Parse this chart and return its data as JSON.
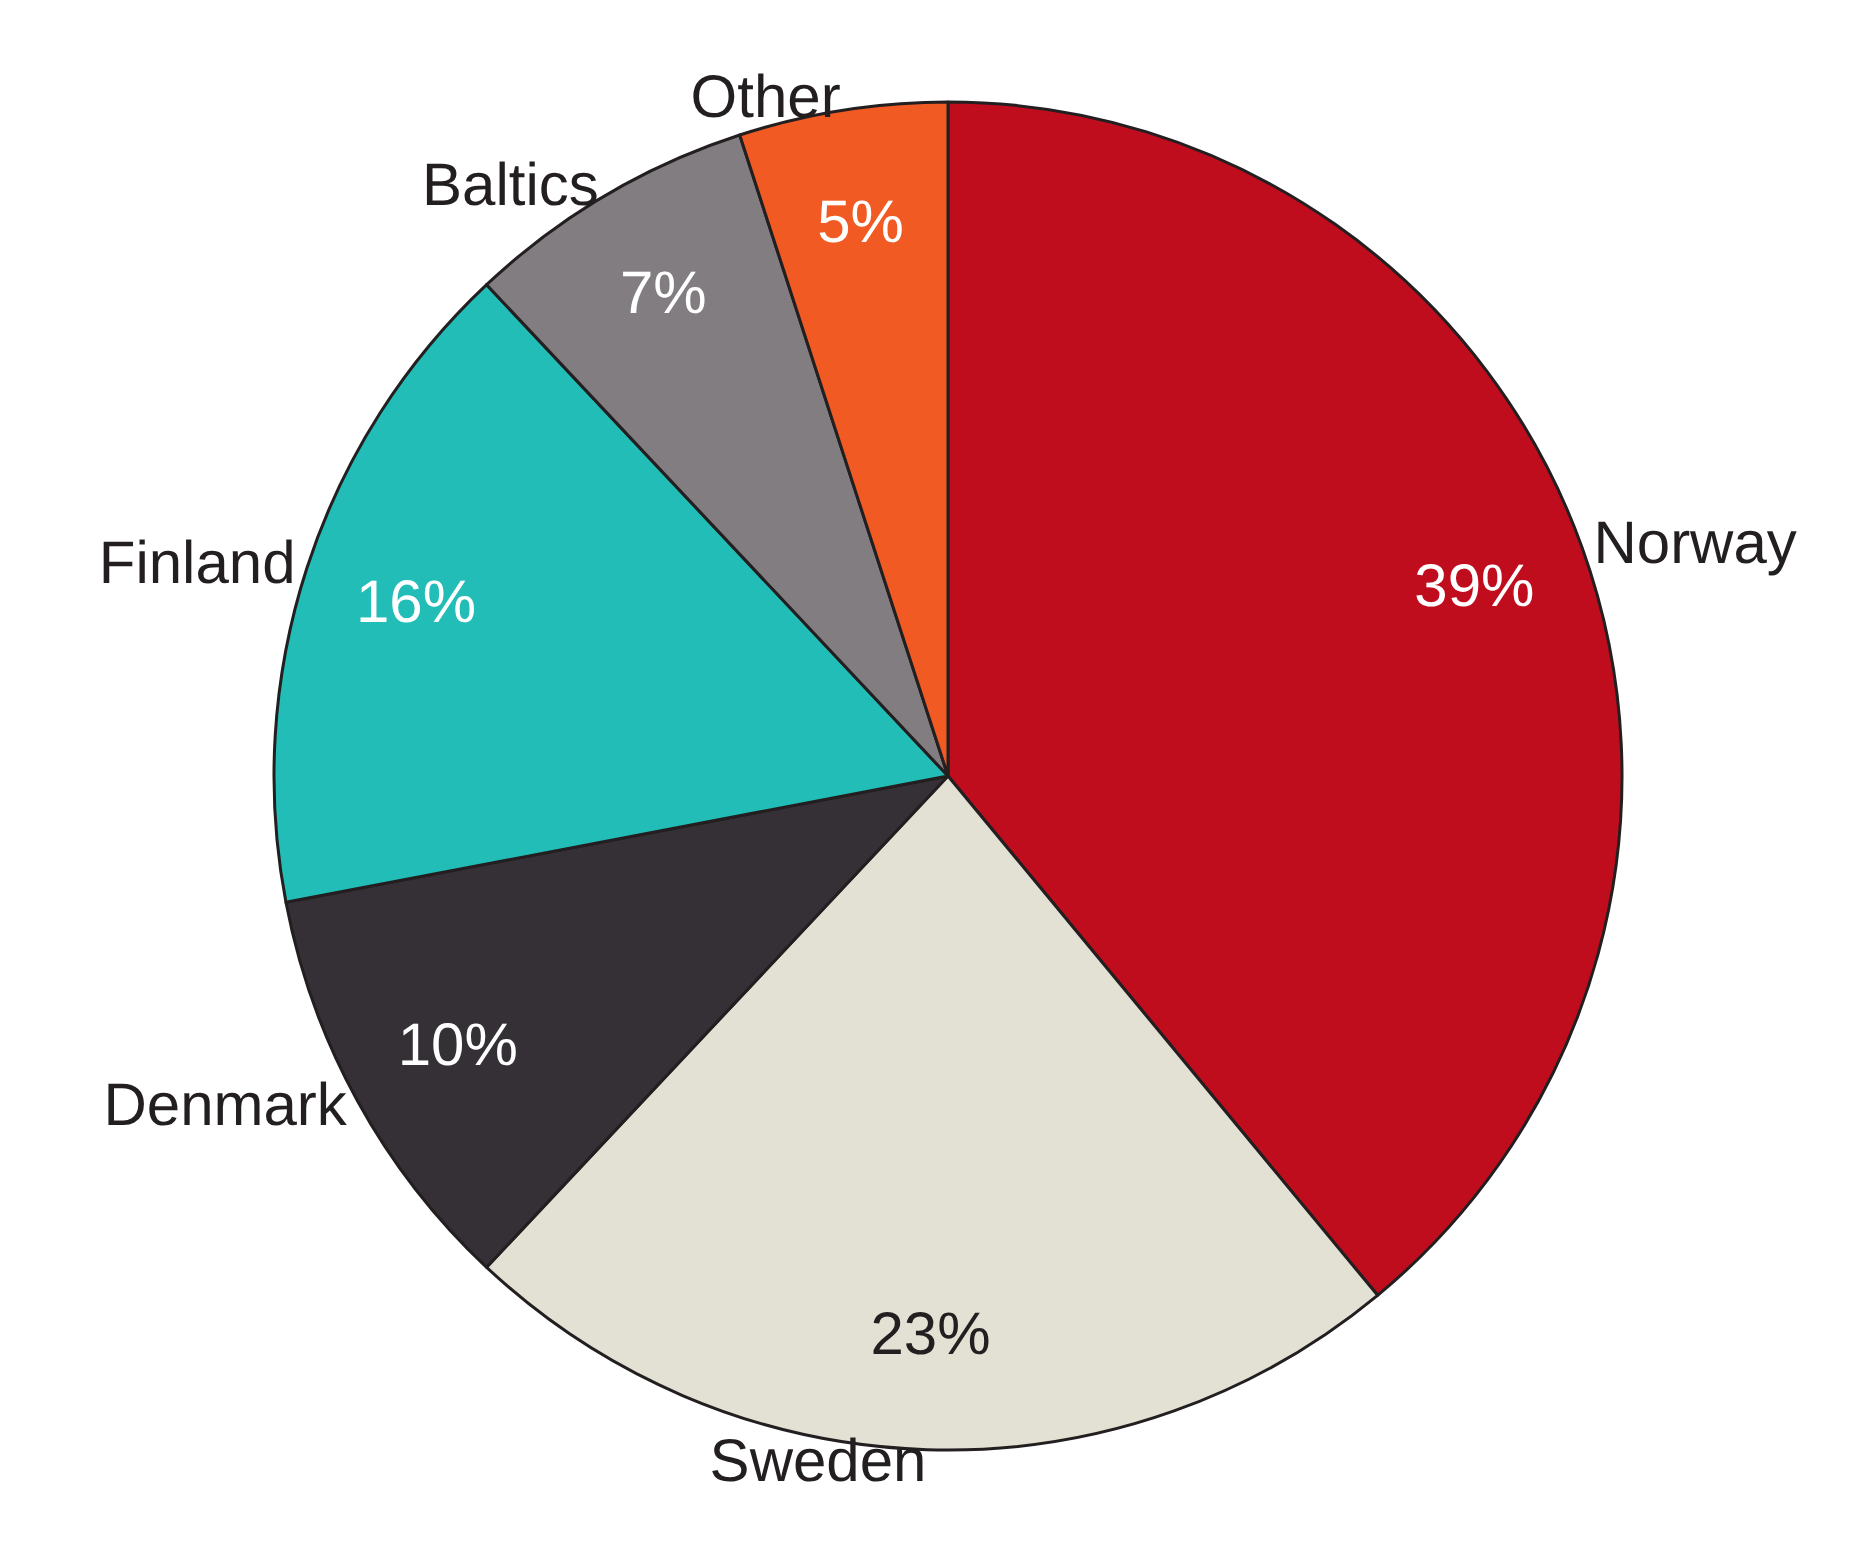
{
  "chart_data": {
    "type": "pie",
    "categories": [
      "Norway",
      "Sweden",
      "Denmark",
      "Finland",
      "Baltics",
      "Other"
    ],
    "values": [
      39,
      23,
      10,
      16,
      7,
      5
    ],
    "value_labels": [
      "39%",
      "23%",
      "10%",
      "16%",
      "7%",
      "5%"
    ],
    "colors": [
      "#c00d1e",
      "#e3e0d4",
      "#353035",
      "#21bdb6",
      "#827d81",
      "#f15a22"
    ],
    "legend": false
  }
}
